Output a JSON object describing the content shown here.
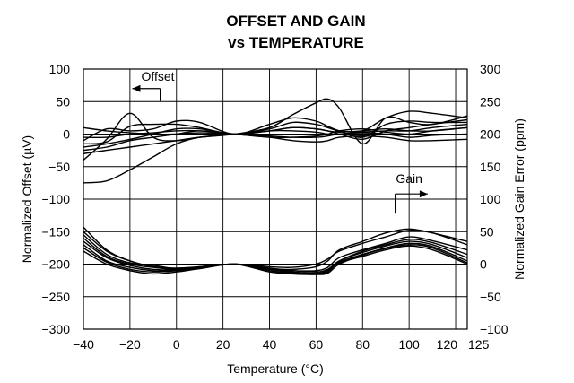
{
  "chart_data": {
    "type": "line",
    "title_lines": [
      "OFFSET AND GAIN",
      "vs TEMPERATURE"
    ],
    "xlabel": "Temperature (°C)",
    "ylabel_left": "Normalized Offset (µV)",
    "ylabel_right": "Normalized Gain Error (ppm)",
    "xlim": [
      -40,
      125
    ],
    "ylim_left": [
      -300,
      100
    ],
    "ylim_right": [
      -100,
      300
    ],
    "grid": true,
    "x_ticks": [
      "-40",
      "-20",
      "0",
      "20",
      "40",
      "60",
      "80",
      "100",
      "120",
      "125"
    ],
    "x_tick_values": [
      -40,
      -20,
      0,
      20,
      40,
      60,
      80,
      100,
      120,
      125
    ],
    "y_ticks_left": [
      "100",
      "50",
      "0",
      "-50",
      "-100",
      "-150",
      "-200",
      "-250",
      "-300"
    ],
    "y_tick_values_left": [
      100,
      50,
      0,
      -50,
      -100,
      -150,
      -200,
      -250,
      -300
    ],
    "y_ticks_right": [
      "300",
      "250",
      "200",
      "150",
      "100",
      "50",
      "0",
      "-50",
      "-100"
    ],
    "y_tick_values_right": [
      300,
      250,
      200,
      150,
      100,
      50,
      0,
      -50,
      -100
    ],
    "annotations": [
      {
        "text": "Offset",
        "arrow": "left",
        "tx": -8,
        "ty": 82,
        "ax1": -7,
        "ax2": -19,
        "ay": 70
      },
      {
        "text": "Gain",
        "arrow": "right",
        "tx": 100,
        "ty": 125,
        "ax1": 94,
        "ax2": 108,
        "ay": 108
      }
    ],
    "x": [
      -40,
      -30,
      -20,
      -10,
      0,
      10,
      25,
      40,
      50,
      60,
      65,
      70,
      80,
      90,
      100,
      110,
      125
    ],
    "offset_series": [
      {
        "values": [
          -40,
          -8,
          32,
          -5,
          -10,
          -5,
          0,
          10,
          30,
          48,
          54,
          40,
          -15,
          25,
          18,
          15,
          28
        ]
      },
      {
        "values": [
          -15,
          -12,
          12,
          15,
          15,
          10,
          0,
          8,
          18,
          15,
          10,
          5,
          5,
          25,
          35,
          32,
          25
        ]
      },
      {
        "values": [
          -10,
          8,
          5,
          8,
          20,
          18,
          0,
          15,
          25,
          20,
          12,
          5,
          -5,
          15,
          20,
          18,
          18
        ]
      },
      {
        "values": [
          -20,
          -15,
          -8,
          0,
          8,
          8,
          0,
          5,
          10,
          8,
          5,
          0,
          -8,
          5,
          10,
          15,
          22
        ]
      },
      {
        "values": [
          -25,
          -20,
          -10,
          -5,
          0,
          5,
          0,
          -5,
          -5,
          -3,
          0,
          5,
          8,
          3,
          0,
          5,
          10
        ]
      },
      {
        "values": [
          -5,
          -5,
          0,
          2,
          5,
          5,
          0,
          -5,
          -10,
          -12,
          -10,
          -5,
          -3,
          -5,
          -10,
          -10,
          -8
        ]
      },
      {
        "values": [
          10,
          5,
          2,
          0,
          0,
          2,
          0,
          -3,
          -5,
          -5,
          -3,
          0,
          2,
          0,
          -5,
          -2,
          0
        ]
      },
      {
        "values": [
          -30,
          -25,
          -20,
          -15,
          -10,
          -5,
          0,
          5,
          10,
          8,
          5,
          3,
          5,
          8,
          5,
          5,
          10
        ]
      },
      {
        "values": [
          -75,
          -72,
          -55,
          -35,
          -15,
          -5,
          0,
          5,
          5,
          3,
          0,
          0,
          3,
          5,
          5,
          10,
          15
        ]
      }
    ],
    "gain_series": [
      {
        "values": [
          57,
          22,
          5,
          -4,
          -8,
          -5,
          0,
          -7,
          -8,
          -4,
          5,
          22,
          35,
          48,
          54,
          48,
          35
        ]
      },
      {
        "values": [
          50,
          20,
          5,
          -4,
          -6,
          -4,
          0,
          -4,
          -5,
          0,
          8,
          20,
          32,
          42,
          52,
          48,
          30
        ]
      },
      {
        "values": [
          45,
          15,
          2,
          -2,
          -7,
          -5,
          0,
          -8,
          -10,
          -10,
          -5,
          10,
          22,
          32,
          42,
          36,
          22
        ]
      },
      {
        "values": [
          40,
          12,
          0,
          -5,
          -8,
          -4,
          0,
          -6,
          -10,
          -12,
          -8,
          5,
          20,
          30,
          38,
          33,
          15
        ]
      },
      {
        "values": [
          35,
          10,
          -2,
          -8,
          -9,
          -5,
          0,
          -8,
          -12,
          -14,
          -10,
          5,
          18,
          28,
          35,
          30,
          10
        ]
      },
      {
        "values": [
          30,
          5,
          -5,
          -10,
          -10,
          -6,
          0,
          -10,
          -13,
          -15,
          -12,
          3,
          15,
          25,
          32,
          27,
          5
        ]
      },
      {
        "values": [
          25,
          3,
          -8,
          -12,
          -10,
          -6,
          0,
          -12,
          -15,
          -16,
          -14,
          0,
          14,
          24,
          30,
          25,
          2
        ]
      },
      {
        "values": [
          20,
          0,
          -10,
          -15,
          -12,
          -7,
          0,
          -10,
          -14,
          -14,
          -10,
          2,
          12,
          22,
          28,
          22,
          0
        ]
      }
    ]
  }
}
